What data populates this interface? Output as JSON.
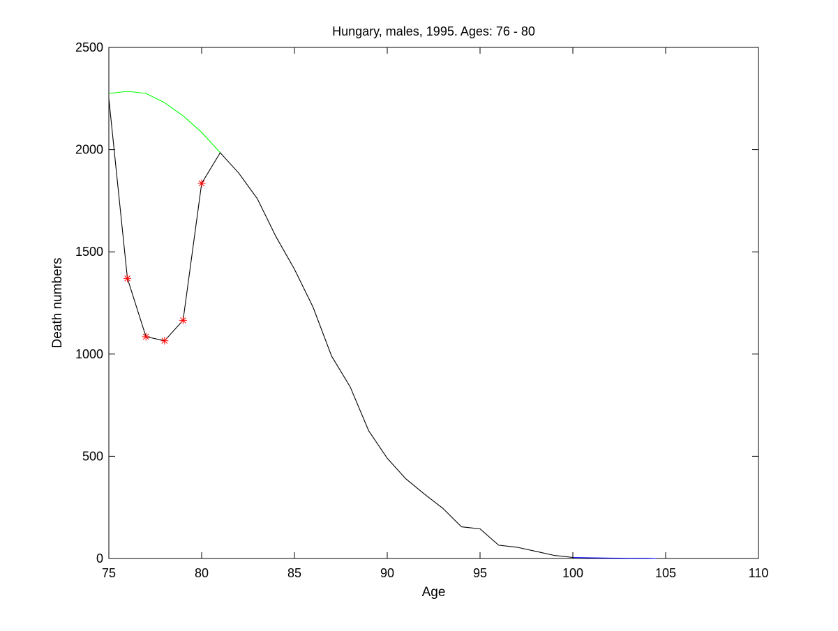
{
  "chart_data": {
    "type": "line",
    "title": "Hungary, males, 1995. Ages: 76 - 80",
    "xlabel": "Age",
    "ylabel": "Death numbers",
    "xlim": [
      75,
      110
    ],
    "ylim": [
      0,
      2500
    ],
    "xticks": [
      75,
      80,
      85,
      90,
      95,
      100,
      105,
      110
    ],
    "yticks": [
      0,
      500,
      1000,
      1500,
      2000,
      2500
    ],
    "grid": false,
    "legend": "none",
    "series": [
      {
        "color": "#00ff00",
        "style": "line",
        "x": [
          75,
          76,
          77,
          78,
          79,
          80,
          81
        ],
        "y": [
          2275,
          2285,
          2275,
          2230,
          2165,
          2085,
          1985
        ]
      },
      {
        "color": "#000000",
        "style": "line",
        "x": [
          75,
          76,
          77,
          78,
          79,
          80,
          81,
          82,
          83,
          84,
          85,
          86,
          87,
          88,
          89,
          90,
          91,
          92,
          93,
          94,
          95,
          96,
          97,
          98,
          99,
          100
        ],
        "y": [
          2250,
          1370,
          1085,
          1065,
          1165,
          1835,
          1985,
          1885,
          1760,
          1575,
          1415,
          1230,
          990,
          840,
          625,
          490,
          390,
          315,
          245,
          155,
          145,
          65,
          55,
          35,
          15,
          5
        ]
      },
      {
        "color": "#ff0000",
        "style": "markers",
        "marker": "asterisk",
        "x": [
          76,
          77,
          78,
          79,
          80
        ],
        "y": [
          1370,
          1085,
          1065,
          1165,
          1835
        ]
      },
      {
        "color": "#0000ff",
        "style": "line",
        "x": [
          100,
          101,
          102,
          103,
          104,
          104.5
        ],
        "y": [
          5,
          3,
          2,
          1,
          1,
          0
        ]
      }
    ]
  }
}
